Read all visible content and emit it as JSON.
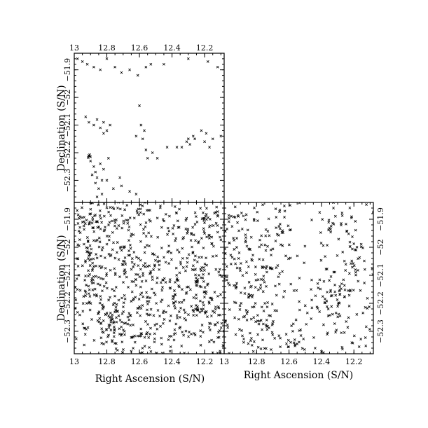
{
  "chart_data": [
    {
      "panel": "top-left",
      "type": "scatter",
      "marker": "x",
      "xlabel": "",
      "ylabel": "Declination (S/N)",
      "xlim": [
        13.0,
        12.08
      ],
      "ylim": [
        -52.38,
        -51.84
      ],
      "xticks": [
        13,
        12.8,
        12.6,
        12.4,
        12.2
      ],
      "xtick_labels": [
        "13",
        "12.8",
        "12.6",
        "12.4",
        "12.2"
      ],
      "xtick_labels_position": "top",
      "yticks": [
        -51.9,
        -52.0,
        -52.1,
        -52.2,
        -52.3
      ],
      "ytick_labels": [
        "−51.9",
        "−52",
        "−52.1",
        "−52.2",
        "−52.3"
      ],
      "ytick_labels_position": "left",
      "points": [
        [
          12.91,
          -52.21
        ],
        [
          12.91,
          -52.212
        ],
        [
          12.905,
          -52.207
        ],
        [
          12.9,
          -52.215
        ],
        [
          12.915,
          -52.218
        ],
        [
          12.9,
          -52.23
        ],
        [
          12.88,
          -52.25
        ],
        [
          12.87,
          -52.27
        ],
        [
          12.86,
          -52.29
        ],
        [
          12.87,
          -52.31
        ],
        [
          12.85,
          -52.33
        ],
        [
          12.83,
          -52.35
        ],
        [
          12.86,
          -52.36
        ],
        [
          12.89,
          -52.28
        ],
        [
          12.84,
          -52.24
        ],
        [
          12.82,
          -52.26
        ],
        [
          12.8,
          -52.3
        ],
        [
          12.83,
          -52.3
        ],
        [
          12.76,
          -52.33
        ],
        [
          12.71,
          -52.32
        ],
        [
          12.66,
          -52.34
        ],
        [
          12.62,
          -52.35
        ],
        [
          12.72,
          -52.29
        ],
        [
          12.79,
          -52.22
        ],
        [
          12.93,
          -52.07
        ],
        [
          12.91,
          -52.09
        ],
        [
          12.88,
          -52.1
        ],
        [
          12.86,
          -52.08
        ],
        [
          12.84,
          -52.11
        ],
        [
          12.82,
          -52.13
        ],
        [
          12.8,
          -52.12
        ],
        [
          12.78,
          -52.1
        ],
        [
          12.82,
          -52.09
        ],
        [
          12.98,
          -51.86
        ],
        [
          12.95,
          -51.87
        ],
        [
          12.92,
          -51.88
        ],
        [
          12.88,
          -51.89
        ],
        [
          12.84,
          -51.9
        ],
        [
          12.8,
          -51.86
        ],
        [
          12.75,
          -51.89
        ],
        [
          12.71,
          -51.91
        ],
        [
          12.66,
          -51.9
        ],
        [
          12.61,
          -51.92
        ],
        [
          12.56,
          -51.89
        ],
        [
          12.53,
          -51.88
        ],
        [
          12.6,
          -52.03
        ],
        [
          12.59,
          -52.1
        ],
        [
          12.57,
          -52.12
        ],
        [
          12.58,
          -52.15
        ],
        [
          12.56,
          -52.19
        ],
        [
          12.55,
          -52.22
        ],
        [
          12.49,
          -52.22
        ],
        [
          12.52,
          -52.2
        ],
        [
          12.62,
          -52.14
        ],
        [
          12.43,
          -52.18
        ],
        [
          12.37,
          -52.18
        ],
        [
          12.34,
          -52.18
        ],
        [
          12.31,
          -52.16
        ],
        [
          12.3,
          -52.15
        ],
        [
          12.29,
          -52.17
        ],
        [
          12.27,
          -52.14
        ],
        [
          12.26,
          -52.15
        ],
        [
          12.2,
          -52.16
        ],
        [
          12.17,
          -52.18
        ],
        [
          12.19,
          -52.13
        ],
        [
          12.22,
          -52.12
        ],
        [
          12.15,
          -52.15
        ],
        [
          12.1,
          -52.14
        ],
        [
          12.45,
          -51.88
        ],
        [
          12.3,
          -51.86
        ],
        [
          12.18,
          -51.87
        ],
        [
          12.12,
          -51.89
        ]
      ]
    },
    {
      "panel": "bottom-left",
      "type": "scatter",
      "marker": "x",
      "xlabel": "Right Ascension (S/N)",
      "ylabel": "Declination (S/N)",
      "xlim": [
        13.0,
        12.08
      ],
      "ylim": [
        -52.38,
        -51.84
      ],
      "xticks": [
        13,
        12.8,
        12.6,
        12.4,
        12.2
      ],
      "xtick_labels": [
        "13",
        "12.8",
        "12.6",
        "12.4",
        "12.2"
      ],
      "xtick_labels_position": "bottom",
      "yticks": [
        -51.9,
        -52.0,
        -52.1,
        -52.2,
        -52.3
      ],
      "ytick_labels": [
        "−51.9",
        "−52",
        "−52.1",
        "−52.2",
        "−52.3"
      ],
      "ytick_labels_position": "left",
      "clusters": [
        {
          "ra": 12.92,
          "dec": -51.92,
          "n": 35,
          "spread": [
            0.05,
            0.04
          ]
        },
        {
          "ra": 12.8,
          "dec": -51.9,
          "n": 30,
          "spread": [
            0.06,
            0.04
          ]
        },
        {
          "ra": 12.6,
          "dec": -51.9,
          "n": 30,
          "spread": [
            0.06,
            0.04
          ]
        },
        {
          "ra": 12.35,
          "dec": -51.92,
          "n": 25,
          "spread": [
            0.06,
            0.04
          ]
        },
        {
          "ra": 12.15,
          "dec": -51.92,
          "n": 25,
          "spread": [
            0.05,
            0.04
          ]
        },
        {
          "ra": 12.9,
          "dec": -52.05,
          "n": 40,
          "spread": [
            0.07,
            0.05
          ]
        },
        {
          "ra": 12.7,
          "dec": -52.05,
          "n": 45,
          "spread": [
            0.06,
            0.06
          ]
        },
        {
          "ra": 12.55,
          "dec": -52.03,
          "n": 25,
          "spread": [
            0.05,
            0.04
          ]
        },
        {
          "ra": 12.25,
          "dec": -52.06,
          "n": 35,
          "spread": [
            0.06,
            0.05
          ]
        },
        {
          "ra": 12.9,
          "dec": -52.2,
          "n": 40,
          "spread": [
            0.05,
            0.05
          ]
        },
        {
          "ra": 12.78,
          "dec": -52.24,
          "n": 50,
          "spread": [
            0.06,
            0.05
          ]
        },
        {
          "ra": 12.55,
          "dec": -52.2,
          "n": 35,
          "spread": [
            0.06,
            0.05
          ]
        },
        {
          "ra": 12.4,
          "dec": -52.18,
          "n": 35,
          "spread": [
            0.06,
            0.05
          ]
        },
        {
          "ra": 12.25,
          "dec": -52.15,
          "n": 40,
          "spread": [
            0.05,
            0.05
          ]
        },
        {
          "ra": 12.15,
          "dec": -52.25,
          "n": 25,
          "spread": [
            0.05,
            0.05
          ]
        },
        {
          "ra": 12.75,
          "dec": -52.32,
          "n": 40,
          "spread": [
            0.06,
            0.04
          ]
        },
        {
          "ra": 12.55,
          "dec": -52.33,
          "n": 30,
          "spread": [
            0.06,
            0.04
          ]
        },
        {
          "ra": 12.35,
          "dec": -52.3,
          "n": 25,
          "spread": [
            0.06,
            0.05
          ]
        }
      ],
      "background_points": 220
    },
    {
      "panel": "bottom-right",
      "type": "scatter",
      "marker": "x",
      "xlabel": "Right Ascension (S/N)",
      "ylabel": "",
      "xlim": [
        13.0,
        12.08
      ],
      "ylim": [
        -52.38,
        -51.84
      ],
      "xticks": [
        13,
        12.8,
        12.6,
        12.4,
        12.2
      ],
      "xtick_labels": [
        "13",
        "12.8",
        "12.6",
        "12.4",
        "12.2"
      ],
      "xtick_labels_position": "bottom",
      "yticks": [
        -51.9,
        -52.0,
        -52.1,
        -52.2,
        -52.3
      ],
      "ytick_labels": [
        "−51.9",
        "−52",
        "−52.1",
        "−52.2",
        "−52.3"
      ],
      "ytick_labels_position": "right",
      "clusters": [
        {
          "ra": 12.92,
          "dec": -51.93,
          "n": 25,
          "spread": [
            0.05,
            0.04
          ]
        },
        {
          "ra": 12.65,
          "dec": -51.92,
          "n": 25,
          "spread": [
            0.07,
            0.04
          ]
        },
        {
          "ra": 12.3,
          "dec": -51.92,
          "n": 20,
          "spread": [
            0.06,
            0.04
          ]
        },
        {
          "ra": 12.88,
          "dec": -52.07,
          "n": 30,
          "spread": [
            0.06,
            0.05
          ]
        },
        {
          "ra": 12.7,
          "dec": -52.06,
          "n": 25,
          "spread": [
            0.05,
            0.05
          ]
        },
        {
          "ra": 12.2,
          "dec": -52.05,
          "n": 20,
          "spread": [
            0.05,
            0.05
          ]
        },
        {
          "ra": 12.88,
          "dec": -52.22,
          "n": 30,
          "spread": [
            0.05,
            0.05
          ]
        },
        {
          "ra": 12.75,
          "dec": -52.28,
          "n": 35,
          "spread": [
            0.06,
            0.05
          ]
        },
        {
          "ra": 12.4,
          "dec": -52.2,
          "n": 25,
          "spread": [
            0.06,
            0.05
          ]
        },
        {
          "ra": 12.28,
          "dec": -52.17,
          "n": 30,
          "spread": [
            0.04,
            0.04
          ]
        },
        {
          "ra": 12.55,
          "dec": -52.32,
          "n": 20,
          "spread": [
            0.06,
            0.04
          ]
        }
      ],
      "background_points": 170
    }
  ]
}
